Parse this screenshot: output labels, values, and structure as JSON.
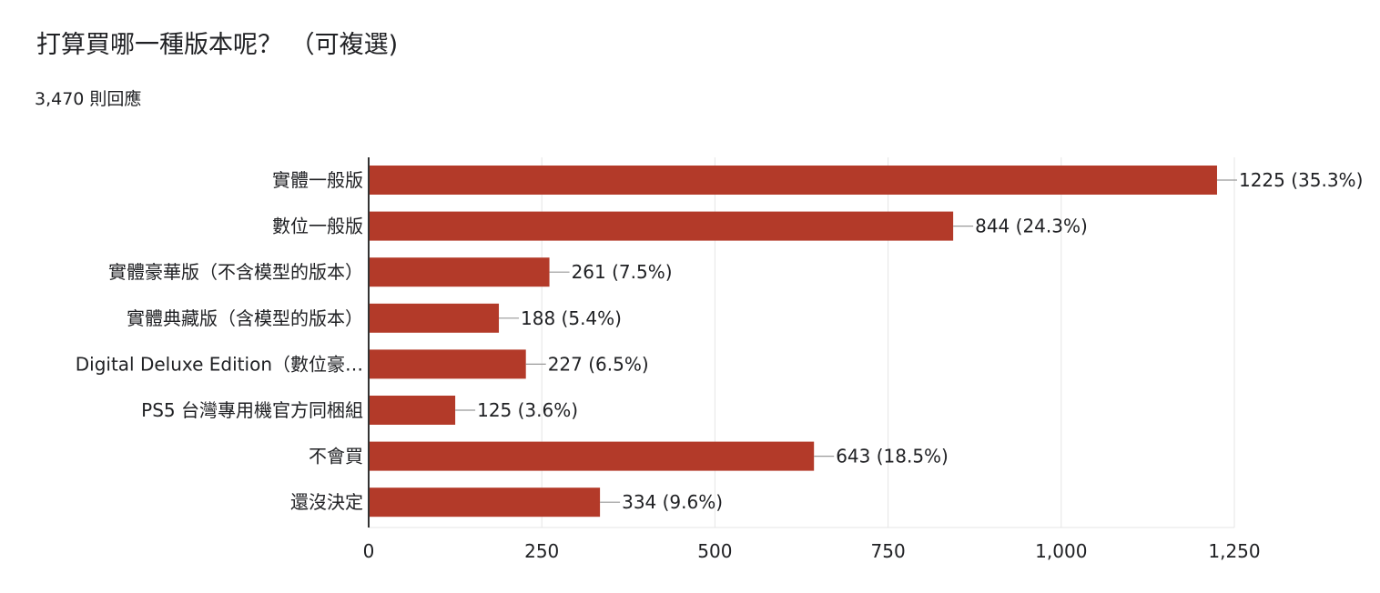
{
  "form": {
    "question": "打算買哪一種版本呢？ （可複選)",
    "responses": "3,470 則回應"
  },
  "colors": {
    "bar": "#b33a29",
    "grid": "#e5e5e5",
    "axis": "#333333",
    "leader": "#999999",
    "text": "#202124"
  },
  "chart_data": {
    "type": "bar",
    "orientation": "horizontal",
    "title": "打算買哪一種版本呢？ （可複選)",
    "subtitle": "3,470 則回應",
    "categories": [
      "實體一般版",
      "數位一般版",
      "實體豪華版（不含模型的版本）",
      "實體典藏版（含模型的版本）",
      "Digital Deluxe Edition（數位豪…",
      "PS5 台灣專用機官方同梱組",
      "不會買",
      "還沒決定"
    ],
    "values": [
      1225,
      844,
      261,
      188,
      227,
      125,
      643,
      334
    ],
    "data_labels": [
      "1225 (35.3%)",
      "844 (24.3%)",
      "261 (7.5%)",
      "188 (5.4%)",
      "227 (6.5%)",
      "125 (3.6%)",
      "643 (18.5%)",
      "334 (9.6%)"
    ],
    "xlim": [
      0,
      1250
    ],
    "xticks": [
      0,
      250,
      500,
      750,
      1000,
      1250
    ],
    "xtick_labels": [
      "0",
      "250",
      "500",
      "750",
      "1,000",
      "1,250"
    ],
    "grid": true,
    "legend": "none"
  }
}
